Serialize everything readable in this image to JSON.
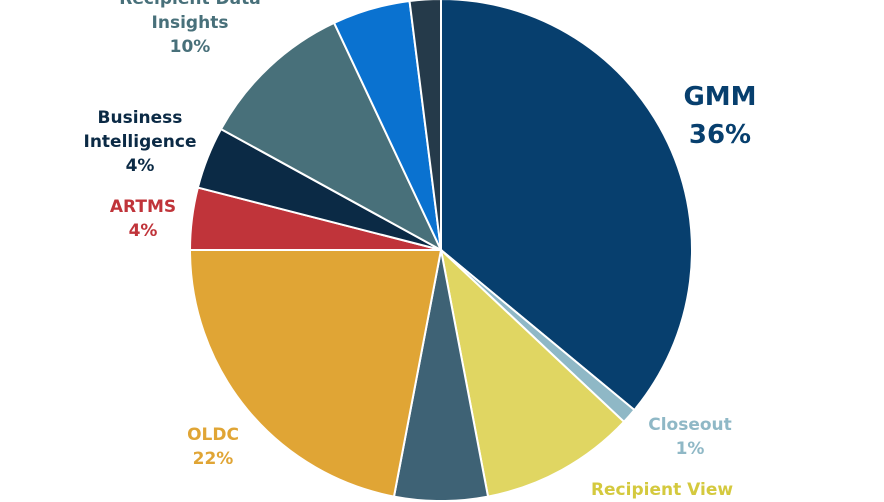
{
  "chart_data": {
    "type": "pie",
    "categories": [
      "GMM",
      "Closeout",
      "Recipient View",
      null,
      "OLDC",
      "ARTMS",
      "Business Intelligence",
      "Recipient Data Insights",
      null,
      null
    ],
    "values": [
      36,
      1,
      10,
      6,
      22,
      4,
      4,
      10,
      5,
      2
    ],
    "value_labels": [
      "36%",
      "1%",
      null,
      null,
      "22%",
      "4%",
      "4%",
      "10%",
      null,
      null
    ],
    "colors": [
      "#073f6e",
      "#8fb8c6",
      "#e0d662",
      "#3e6275",
      "#e0a535",
      "#c0343a",
      "#0b2a45",
      "#48707a",
      "#0a72d0",
      "#253a4a"
    ]
  }
}
